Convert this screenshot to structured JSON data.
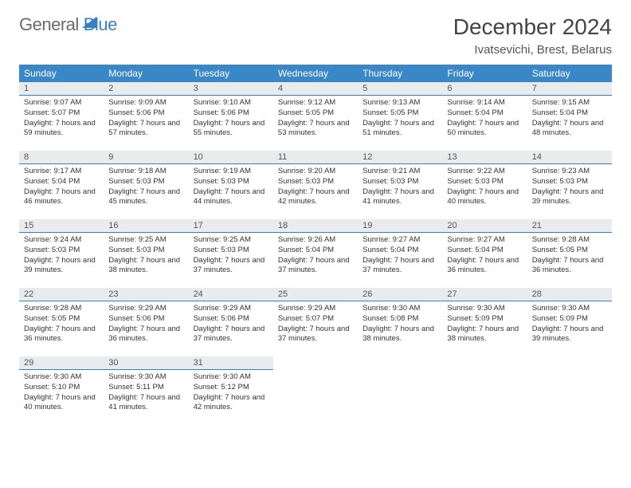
{
  "logo": {
    "part1": "General",
    "part2": "Blue"
  },
  "header": {
    "title": "December 2024",
    "location": "Ivatsevichi, Brest, Belarus"
  },
  "colors": {
    "header_bg": "#3a87c7",
    "header_text": "#ffffff",
    "daynum_bg": "#e8ecef",
    "daynum_border": "#3a7fc4",
    "body_text": "#333333",
    "logo_gray": "#6a6a6a",
    "logo_blue": "#3a7fc4"
  },
  "dayNames": [
    "Sunday",
    "Monday",
    "Tuesday",
    "Wednesday",
    "Thursday",
    "Friday",
    "Saturday"
  ],
  "weeks": [
    [
      {
        "n": "1",
        "sunrise": "Sunrise: 9:07 AM",
        "sunset": "Sunset: 5:07 PM",
        "daylight": "Daylight: 7 hours and 59 minutes."
      },
      {
        "n": "2",
        "sunrise": "Sunrise: 9:09 AM",
        "sunset": "Sunset: 5:06 PM",
        "daylight": "Daylight: 7 hours and 57 minutes."
      },
      {
        "n": "3",
        "sunrise": "Sunrise: 9:10 AM",
        "sunset": "Sunset: 5:06 PM",
        "daylight": "Daylight: 7 hours and 55 minutes."
      },
      {
        "n": "4",
        "sunrise": "Sunrise: 9:12 AM",
        "sunset": "Sunset: 5:05 PM",
        "daylight": "Daylight: 7 hours and 53 minutes."
      },
      {
        "n": "5",
        "sunrise": "Sunrise: 9:13 AM",
        "sunset": "Sunset: 5:05 PM",
        "daylight": "Daylight: 7 hours and 51 minutes."
      },
      {
        "n": "6",
        "sunrise": "Sunrise: 9:14 AM",
        "sunset": "Sunset: 5:04 PM",
        "daylight": "Daylight: 7 hours and 50 minutes."
      },
      {
        "n": "7",
        "sunrise": "Sunrise: 9:15 AM",
        "sunset": "Sunset: 5:04 PM",
        "daylight": "Daylight: 7 hours and 48 minutes."
      }
    ],
    [
      {
        "n": "8",
        "sunrise": "Sunrise: 9:17 AM",
        "sunset": "Sunset: 5:04 PM",
        "daylight": "Daylight: 7 hours and 46 minutes."
      },
      {
        "n": "9",
        "sunrise": "Sunrise: 9:18 AM",
        "sunset": "Sunset: 5:03 PM",
        "daylight": "Daylight: 7 hours and 45 minutes."
      },
      {
        "n": "10",
        "sunrise": "Sunrise: 9:19 AM",
        "sunset": "Sunset: 5:03 PM",
        "daylight": "Daylight: 7 hours and 44 minutes."
      },
      {
        "n": "11",
        "sunrise": "Sunrise: 9:20 AM",
        "sunset": "Sunset: 5:03 PM",
        "daylight": "Daylight: 7 hours and 42 minutes."
      },
      {
        "n": "12",
        "sunrise": "Sunrise: 9:21 AM",
        "sunset": "Sunset: 5:03 PM",
        "daylight": "Daylight: 7 hours and 41 minutes."
      },
      {
        "n": "13",
        "sunrise": "Sunrise: 9:22 AM",
        "sunset": "Sunset: 5:03 PM",
        "daylight": "Daylight: 7 hours and 40 minutes."
      },
      {
        "n": "14",
        "sunrise": "Sunrise: 9:23 AM",
        "sunset": "Sunset: 5:03 PM",
        "daylight": "Daylight: 7 hours and 39 minutes."
      }
    ],
    [
      {
        "n": "15",
        "sunrise": "Sunrise: 9:24 AM",
        "sunset": "Sunset: 5:03 PM",
        "daylight": "Daylight: 7 hours and 39 minutes."
      },
      {
        "n": "16",
        "sunrise": "Sunrise: 9:25 AM",
        "sunset": "Sunset: 5:03 PM",
        "daylight": "Daylight: 7 hours and 38 minutes."
      },
      {
        "n": "17",
        "sunrise": "Sunrise: 9:25 AM",
        "sunset": "Sunset: 5:03 PM",
        "daylight": "Daylight: 7 hours and 37 minutes."
      },
      {
        "n": "18",
        "sunrise": "Sunrise: 9:26 AM",
        "sunset": "Sunset: 5:04 PM",
        "daylight": "Daylight: 7 hours and 37 minutes."
      },
      {
        "n": "19",
        "sunrise": "Sunrise: 9:27 AM",
        "sunset": "Sunset: 5:04 PM",
        "daylight": "Daylight: 7 hours and 37 minutes."
      },
      {
        "n": "20",
        "sunrise": "Sunrise: 9:27 AM",
        "sunset": "Sunset: 5:04 PM",
        "daylight": "Daylight: 7 hours and 36 minutes."
      },
      {
        "n": "21",
        "sunrise": "Sunrise: 9:28 AM",
        "sunset": "Sunset: 5:05 PM",
        "daylight": "Daylight: 7 hours and 36 minutes."
      }
    ],
    [
      {
        "n": "22",
        "sunrise": "Sunrise: 9:28 AM",
        "sunset": "Sunset: 5:05 PM",
        "daylight": "Daylight: 7 hours and 36 minutes."
      },
      {
        "n": "23",
        "sunrise": "Sunrise: 9:29 AM",
        "sunset": "Sunset: 5:06 PM",
        "daylight": "Daylight: 7 hours and 36 minutes."
      },
      {
        "n": "24",
        "sunrise": "Sunrise: 9:29 AM",
        "sunset": "Sunset: 5:06 PM",
        "daylight": "Daylight: 7 hours and 37 minutes."
      },
      {
        "n": "25",
        "sunrise": "Sunrise: 9:29 AM",
        "sunset": "Sunset: 5:07 PM",
        "daylight": "Daylight: 7 hours and 37 minutes."
      },
      {
        "n": "26",
        "sunrise": "Sunrise: 9:30 AM",
        "sunset": "Sunset: 5:08 PM",
        "daylight": "Daylight: 7 hours and 38 minutes."
      },
      {
        "n": "27",
        "sunrise": "Sunrise: 9:30 AM",
        "sunset": "Sunset: 5:09 PM",
        "daylight": "Daylight: 7 hours and 38 minutes."
      },
      {
        "n": "28",
        "sunrise": "Sunrise: 9:30 AM",
        "sunset": "Sunset: 5:09 PM",
        "daylight": "Daylight: 7 hours and 39 minutes."
      }
    ],
    [
      {
        "n": "29",
        "sunrise": "Sunrise: 9:30 AM",
        "sunset": "Sunset: 5:10 PM",
        "daylight": "Daylight: 7 hours and 40 minutes."
      },
      {
        "n": "30",
        "sunrise": "Sunrise: 9:30 AM",
        "sunset": "Sunset: 5:11 PM",
        "daylight": "Daylight: 7 hours and 41 minutes."
      },
      {
        "n": "31",
        "sunrise": "Sunrise: 9:30 AM",
        "sunset": "Sunset: 5:12 PM",
        "daylight": "Daylight: 7 hours and 42 minutes."
      },
      {
        "empty": true
      },
      {
        "empty": true
      },
      {
        "empty": true
      },
      {
        "empty": true
      }
    ]
  ]
}
